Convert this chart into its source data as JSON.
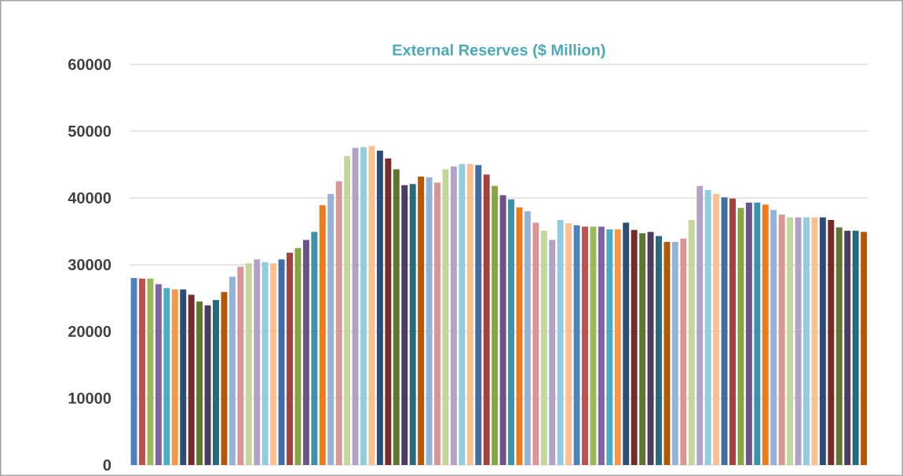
{
  "chart_data": {
    "type": "bar",
    "title": "External Reserves ($ Million)",
    "categories": [
      null,
      null,
      null,
      null,
      null,
      null,
      null,
      null,
      null,
      null,
      null,
      null,
      null,
      null,
      null,
      null,
      null,
      null,
      null,
      null,
      null,
      null,
      null,
      null,
      null,
      null,
      null,
      null,
      null,
      null,
      null,
      null,
      null,
      null,
      null,
      null,
      null,
      null,
      null,
      null,
      null,
      null,
      null,
      null,
      null,
      null,
      null,
      null,
      null,
      null,
      null,
      null,
      null,
      null,
      null,
      null,
      null,
      null,
      null,
      null,
      null,
      null,
      null,
      null,
      null,
      null,
      null,
      null,
      null,
      null,
      null,
      null,
      null,
      null,
      null,
      null,
      null,
      null,
      null,
      null,
      null,
      null,
      null,
      null,
      null,
      null,
      null,
      null,
      null,
      null
    ],
    "values": [
      28000,
      27900,
      27900,
      27100,
      26500,
      26300,
      26300,
      25500,
      24500,
      23900,
      24700,
      25900,
      28200,
      29700,
      30200,
      30800,
      30400,
      30200,
      30800,
      31800,
      32500,
      33700,
      34900,
      38900,
      40600,
      42500,
      46300,
      47500,
      47600,
      47800,
      47100,
      45900,
      44300,
      41900,
      42100,
      43200,
      43100,
      42300,
      44300,
      44700,
      45100,
      45100,
      44900,
      43500,
      41800,
      40400,
      39800,
      38600,
      38000,
      36300,
      35100,
      33700,
      36700,
      36200,
      35900,
      35700,
      35700,
      35700,
      35300,
      35300,
      36300,
      35200,
      34700,
      34900,
      34300,
      33400,
      33400,
      33900,
      36700,
      41800,
      41200,
      40600,
      40100,
      39900,
      38500,
      39300,
      39300,
      39000,
      38200,
      37500,
      37100,
      37100,
      37100,
      37100,
      37100,
      36700,
      35600,
      35100,
      35100,
      34900
    ],
    "colors": [
      "#4f81bd",
      "#c0504d",
      "#9bbb59",
      "#8064a2",
      "#4bacc6",
      "#f79646",
      "#2c4d75",
      "#772c2a",
      "#5f7530",
      "#4d3b62",
      "#276a7c",
      "#b65708",
      "#95b3d7",
      "#d99694",
      "#c3d69b",
      "#b3a2c7",
      "#93cddd",
      "#fac090",
      "#3f6ea5",
      "#a5403d",
      "#86a543",
      "#6b5289",
      "#3a93ab",
      "#f07a1a",
      "#95b3d7",
      "#d99694",
      "#c3d69b",
      "#b3a2c7",
      "#93cddd",
      "#fac090",
      "#2c4d75",
      "#772c2a",
      "#5f7530",
      "#4d3b62",
      "#276a7c",
      "#b65708",
      "#95b3d7",
      "#d99694",
      "#c3d69b",
      "#b3a2c7",
      "#93cddd",
      "#fac090",
      "#3f6ea5",
      "#a5403d",
      "#86a543",
      "#6b5289",
      "#3a93ab",
      "#f07a1a",
      "#95b3d7",
      "#d99694",
      "#c3d69b",
      "#b3a2c7",
      "#93cddd",
      "#fac090",
      "#4f81bd",
      "#c0504d",
      "#9bbb59",
      "#8064a2",
      "#4bacc6",
      "#f79646",
      "#2c4d75",
      "#772c2a",
      "#5f7530",
      "#4d3b62",
      "#276a7c",
      "#b65708",
      "#95b3d7",
      "#d99694",
      "#c3d69b",
      "#b3a2c7",
      "#93cddd",
      "#fac090",
      "#3f6ea5",
      "#a5403d",
      "#86a543",
      "#6b5289",
      "#3a93ab",
      "#f07a1a",
      "#95b3d7",
      "#d99694",
      "#c3d69b",
      "#b3a2c7",
      "#93cddd",
      "#fac090",
      "#2c4d75",
      "#772c2a",
      "#5f7530",
      "#4d3b62",
      "#276a7c",
      "#b65708"
    ],
    "ylim": [
      0,
      60000
    ],
    "yticks": [
      0,
      10000,
      20000,
      30000,
      40000,
      50000,
      60000
    ],
    "grid": "y",
    "tick_labels": "y"
  }
}
